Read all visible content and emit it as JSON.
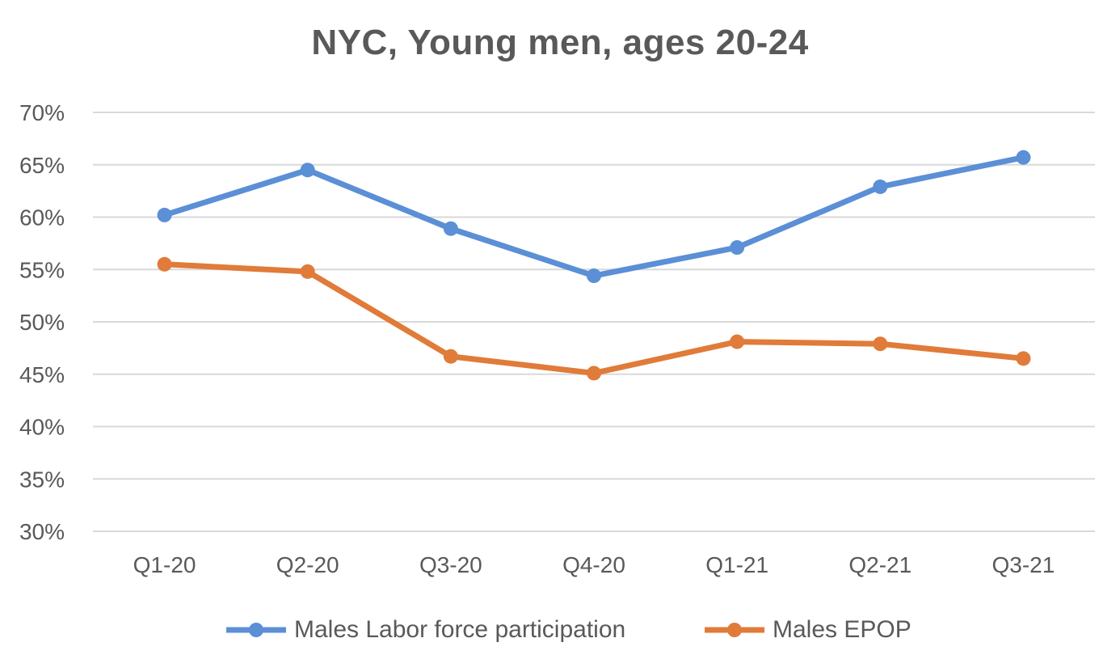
{
  "chart_data": {
    "type": "line",
    "title": "NYC, Young men, ages 20-24",
    "xlabel": "",
    "ylabel": "",
    "categories": [
      "Q1-20",
      "Q2-20",
      "Q3-20",
      "Q4-20",
      "Q1-21",
      "Q2-21",
      "Q3-21"
    ],
    "yticks": [
      "70%",
      "65%",
      "60%",
      "55%",
      "50%",
      "45%",
      "40%",
      "35%",
      "30%"
    ],
    "ylim": [
      30,
      70
    ],
    "grid": true,
    "legend_position": "bottom",
    "series": [
      {
        "name": "Males Labor force participation",
        "color": "#5b8fd6",
        "values": [
          60.2,
          64.5,
          58.9,
          54.4,
          57.1,
          62.9,
          65.7
        ]
      },
      {
        "name": "Males EPOP",
        "color": "#e07b39",
        "values": [
          55.5,
          54.8,
          46.7,
          45.1,
          48.1,
          47.9,
          46.5
        ]
      }
    ]
  }
}
